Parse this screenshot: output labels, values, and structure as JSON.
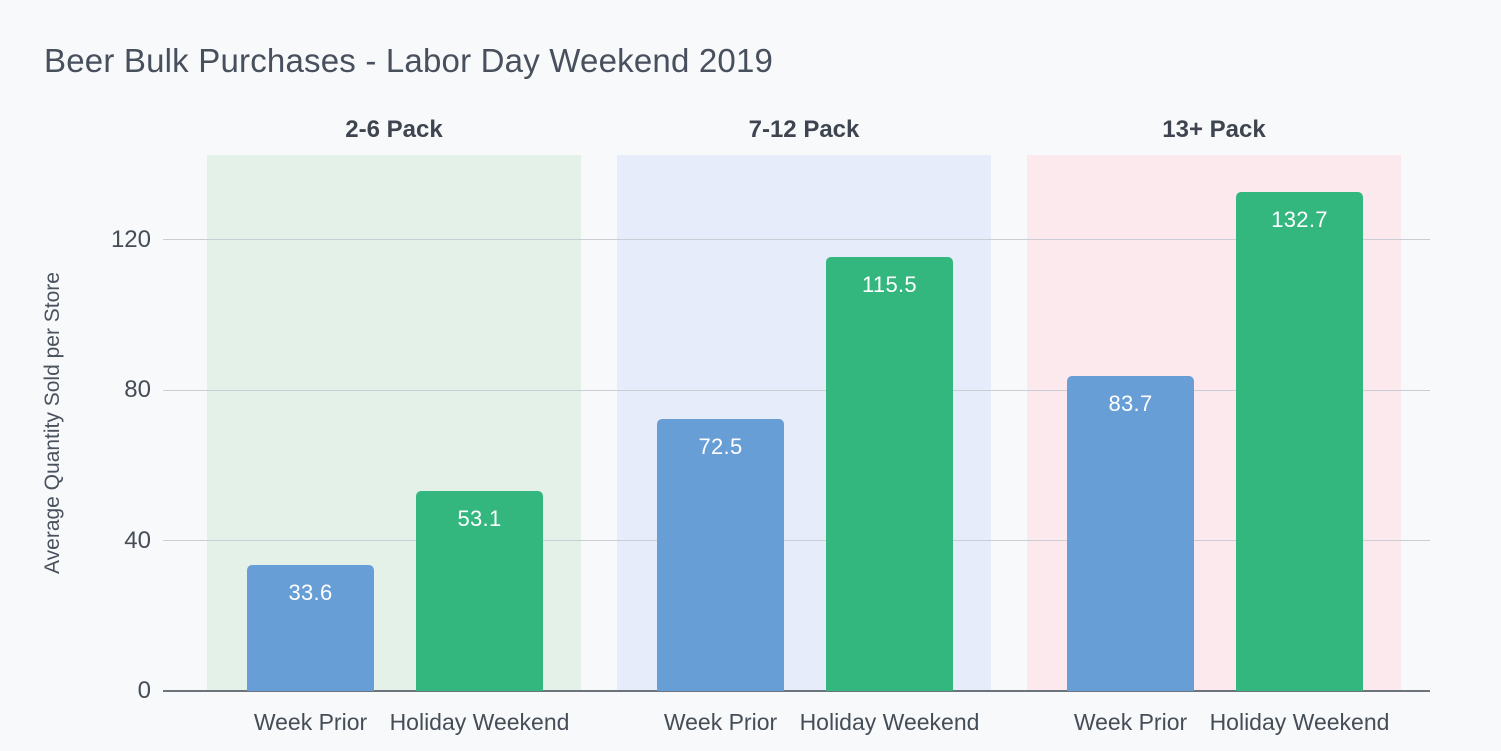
{
  "chart_data": {
    "type": "bar",
    "title": "Beer Bulk Purchases - Labor Day Weekend 2019",
    "ylabel": "Average Quantity Sold per Store",
    "xlabel": "",
    "ylim": [
      0,
      142.6
    ],
    "yticks": [
      0,
      40,
      80,
      120
    ],
    "grid": true,
    "legend": "none",
    "series_labels": [
      "Week Prior",
      "Holiday Weekend"
    ],
    "series_colors": [
      "#689ed6",
      "#33b77e"
    ],
    "groups": [
      {
        "label": "2-6 Pack",
        "panel_color": "#e4f1e8",
        "bars": [
          {
            "name": "Week Prior",
            "value": 33.6
          },
          {
            "name": "Holiday Weekend",
            "value": 53.1
          }
        ]
      },
      {
        "label": "7-12 Pack",
        "panel_color": "#e6ecf9",
        "bars": [
          {
            "name": "Week Prior",
            "value": 72.5
          },
          {
            "name": "Holiday Weekend",
            "value": 115.5
          }
        ]
      },
      {
        "label": "13+ Pack",
        "panel_color": "#fbe9ee",
        "bars": [
          {
            "name": "Week Prior",
            "value": 83.7
          },
          {
            "name": "Holiday Weekend",
            "value": 132.7
          }
        ]
      }
    ],
    "colors": {
      "background": "#f8f9fb",
      "axis_line": "#6d737b",
      "gridline": "#c9cdd4",
      "text": "#454d57",
      "bar_label": "#ffffff"
    }
  }
}
